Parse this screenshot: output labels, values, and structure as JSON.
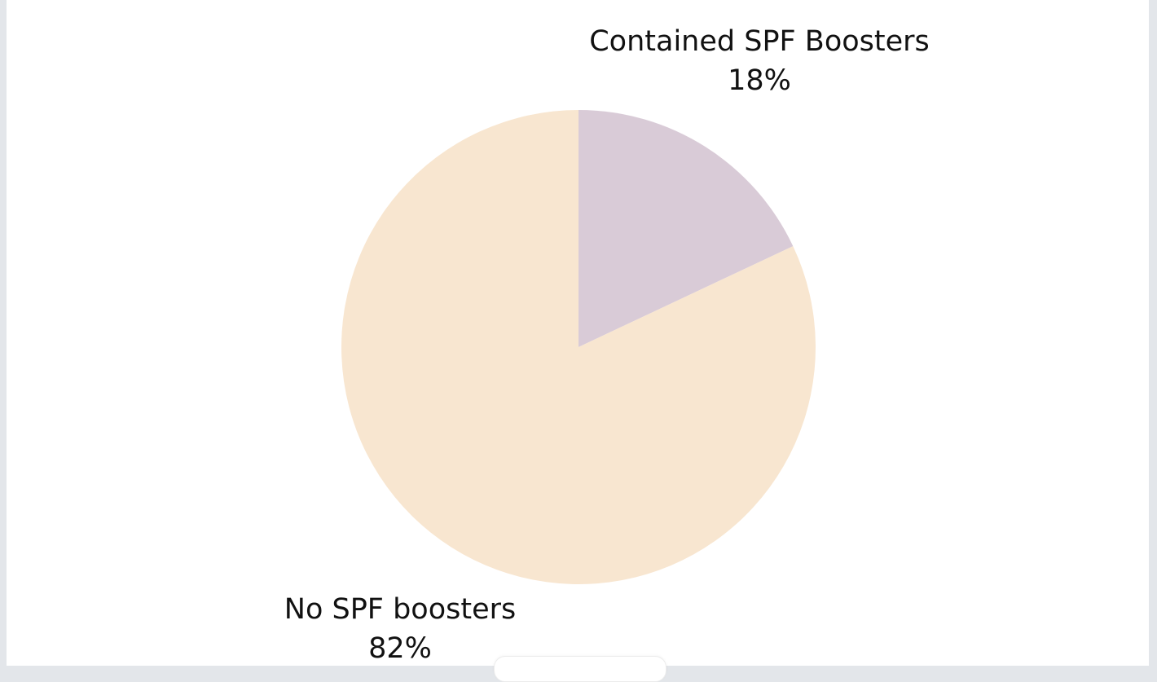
{
  "chart_data": {
    "type": "pie",
    "title": "",
    "start_angle_deg": 0,
    "direction": "clockwise",
    "slices": [
      {
        "label": "Contained SPF Boosters",
        "value": 18,
        "value_label": "18%",
        "color": "#d9cbd7"
      },
      {
        "label": "No SPF boosters",
        "value": 82,
        "value_label": "82%",
        "color": "#f8e6d0"
      }
    ]
  }
}
